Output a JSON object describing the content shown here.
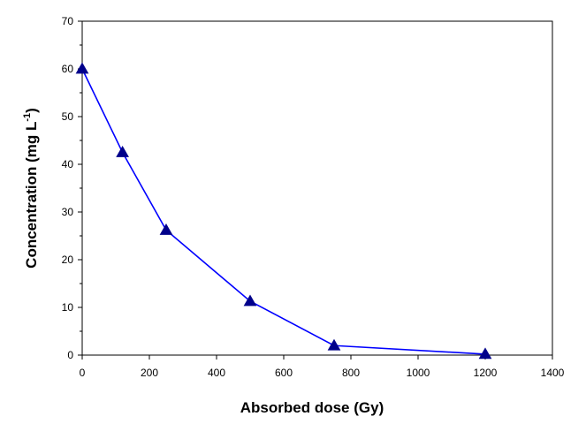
{
  "chart_data": {
    "type": "line",
    "title": "",
    "xlabel": "Absorbed dose (Gy)",
    "ylabel_text": "Concentration (mg L",
    "ylabel_sup": "-1",
    "ylabel_end": ")",
    "xlim": [
      0,
      1400
    ],
    "ylim": [
      0,
      70
    ],
    "x_ticks": [
      0,
      200,
      400,
      600,
      800,
      1000,
      1200,
      1400
    ],
    "y_ticks": [
      0,
      10,
      20,
      30,
      40,
      50,
      60,
      70
    ],
    "grid": false,
    "legend": "none",
    "marker": "triangle",
    "colors": {
      "line": "#0000ff",
      "marker": "#00008b"
    },
    "series": [
      {
        "x": [
          0,
          120,
          250,
          500,
          750,
          1200
        ],
        "y": [
          60,
          42.5,
          26.2,
          11.3,
          2.0,
          0.2
        ]
      }
    ]
  }
}
